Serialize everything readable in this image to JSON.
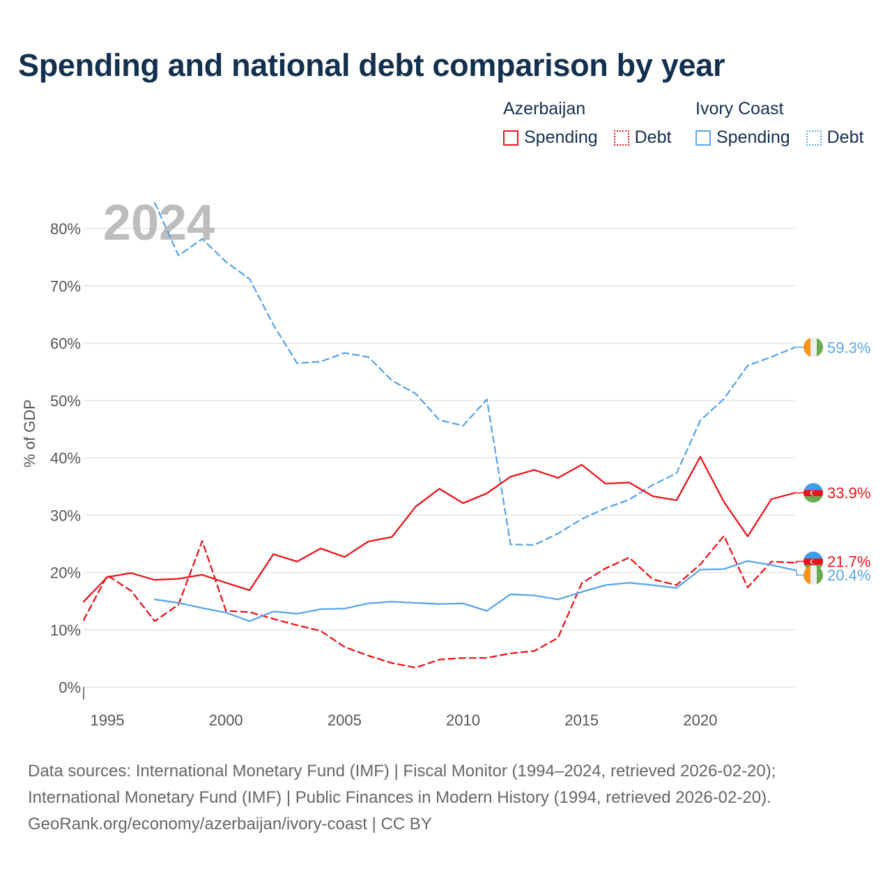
{
  "title": "Spending and national debt comparison by year",
  "legend": {
    "groups": [
      {
        "country": "Azerbaijan",
        "items": [
          {
            "label": "Spending",
            "style": "solid"
          },
          {
            "label": "Debt",
            "style": "dotted"
          }
        ],
        "color": "#e8141b"
      },
      {
        "country": "Ivory Coast",
        "items": [
          {
            "label": "Spending",
            "style": "solid"
          },
          {
            "label": "Debt",
            "style": "dotted"
          }
        ],
        "color": "#5aa5e6"
      }
    ]
  },
  "year_watermark": "2024",
  "footer": {
    "line1": "Data sources: International Monetary Fund (IMF) | Fiscal Monitor (1994–2024, retrieved 2026-02-20);",
    "line2": "International Monetary Fund (IMF) | Public Finances in Modern History (1994, retrieved 2026-02-20).",
    "line3": "GeoRank.org/economy/azerbaijan/ivory-coast | CC BY"
  },
  "chart_data": {
    "type": "line",
    "title": "Spending and national debt comparison by year",
    "xlabel": "",
    "ylabel": "% of GDP",
    "xlim": [
      1994,
      2024
    ],
    "ylim": [
      0,
      80
    ],
    "x_ticks": [
      1995,
      2000,
      2005,
      2010,
      2015,
      2020
    ],
    "y_ticks": [
      0,
      10,
      20,
      30,
      40,
      50,
      60,
      70,
      80
    ],
    "y_tick_labels": [
      "0%",
      "10%",
      "20%",
      "30%",
      "40%",
      "50%",
      "60%",
      "70%",
      "80%"
    ],
    "grid": true,
    "series": [
      {
        "name": "Ivory Coast Debt",
        "country": "Ivory Coast",
        "kind": "Debt",
        "color": "#5aa5e6",
        "dashed": true,
        "end_label": "59.3%",
        "x": [
          1997,
          1998,
          1999,
          2000,
          2001,
          2002,
          2003,
          2004,
          2005,
          2006,
          2007,
          2008,
          2009,
          2010,
          2011,
          2012,
          2013,
          2014,
          2015,
          2016,
          2017,
          2018,
          2019,
          2020,
          2021,
          2022,
          2023,
          2024
        ],
        "values": [
          84.5,
          75.3,
          78.2,
          74.2,
          71.2,
          63.2,
          56.5,
          56.8,
          58.3,
          57.6,
          53.5,
          51.2,
          46.6,
          45.6,
          50.2,
          24.9,
          24.8,
          26.8,
          29.3,
          31.2,
          32.7,
          35.3,
          37.3,
          46.5,
          50.3,
          56.1,
          57.6,
          59.3
        ],
        "label_flag": "ci"
      },
      {
        "name": "Azerbaijan Spending",
        "country": "Azerbaijan",
        "kind": "Spending",
        "color": "#e8141b",
        "dashed": false,
        "end_label": "33.9%",
        "x": [
          1994,
          1995,
          1996,
          1997,
          1998,
          1999,
          2000,
          2001,
          2002,
          2003,
          2004,
          2005,
          2006,
          2007,
          2008,
          2009,
          2010,
          2011,
          2012,
          2013,
          2014,
          2015,
          2016,
          2017,
          2018,
          2019,
          2020,
          2021,
          2022,
          2023,
          2024
        ],
        "values": [
          14.9,
          19.2,
          19.9,
          18.7,
          18.9,
          19.6,
          18.2,
          16.9,
          23.2,
          21.9,
          24.2,
          22.7,
          25.4,
          26.2,
          31.5,
          34.6,
          32.1,
          33.8,
          36.7,
          37.9,
          36.5,
          38.8,
          35.5,
          35.7,
          33.3,
          32.6,
          40.2,
          32.3,
          26.3,
          32.8,
          33.9
        ],
        "label_flag": "az"
      },
      {
        "name": "Azerbaijan Debt",
        "country": "Azerbaijan",
        "kind": "Debt",
        "color": "#e8141b",
        "dashed": true,
        "end_label": "21.7%",
        "x": [
          1994,
          1995,
          1996,
          1997,
          1998,
          1999,
          2000,
          2001,
          2002,
          2003,
          2004,
          2005,
          2006,
          2007,
          2008,
          2009,
          2010,
          2011,
          2012,
          2013,
          2014,
          2015,
          2016,
          2017,
          2018,
          2019,
          2020,
          2021,
          2022,
          2023,
          2024
        ],
        "values": [
          11.7,
          19.5,
          16.8,
          11.5,
          14.4,
          25.5,
          13.3,
          13.1,
          11.9,
          10.8,
          9.8,
          7.0,
          5.5,
          4.2,
          3.4,
          4.8,
          5.1,
          5.1,
          5.9,
          6.3,
          8.6,
          18.1,
          20.7,
          22.6,
          18.8,
          17.8,
          21.4,
          26.4,
          17.4,
          21.9,
          21.7
        ],
        "label_flag": "az"
      },
      {
        "name": "Ivory Coast Spending",
        "country": "Ivory Coast",
        "kind": "Spending",
        "color": "#5aa5e6",
        "dashed": false,
        "end_label": "20.4%",
        "x": [
          1997,
          1998,
          1999,
          2000,
          2001,
          2002,
          2003,
          2004,
          2005,
          2006,
          2007,
          2008,
          2009,
          2010,
          2011,
          2012,
          2013,
          2014,
          2015,
          2016,
          2017,
          2018,
          2019,
          2020,
          2021,
          2022,
          2023,
          2024
        ],
        "values": [
          15.3,
          14.7,
          13.8,
          13.0,
          11.5,
          13.2,
          12.8,
          13.6,
          13.7,
          14.6,
          14.9,
          14.7,
          14.5,
          14.6,
          13.3,
          16.2,
          16.0,
          15.3,
          16.6,
          17.8,
          18.2,
          17.8,
          17.3,
          20.5,
          20.6,
          22.0,
          21.3,
          20.4
        ],
        "label_flag": "ci"
      }
    ]
  }
}
